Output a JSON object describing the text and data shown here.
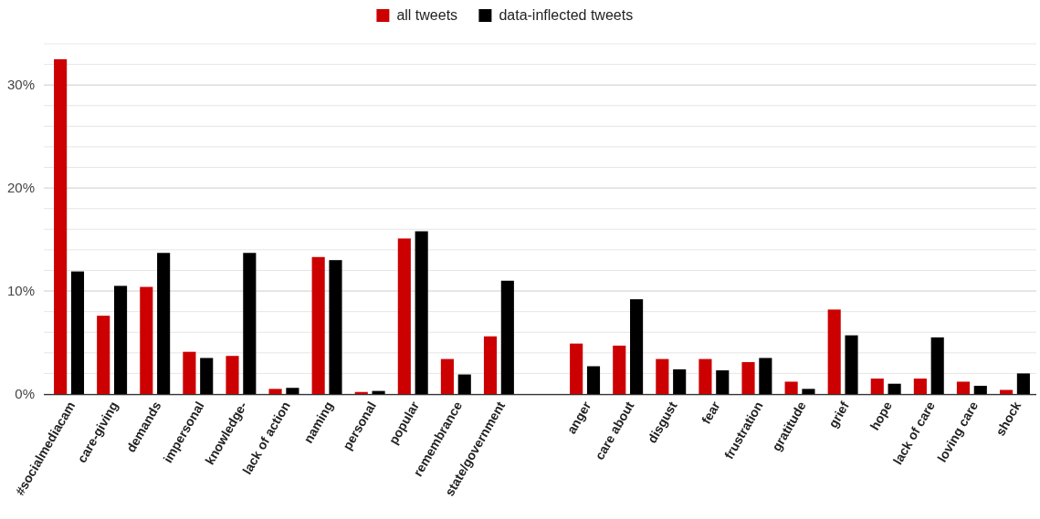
{
  "chart_data": {
    "type": "bar",
    "categories": [
      "#socialmediacam",
      "care-giving",
      "demands",
      "impersonal",
      "knowledge-",
      "lack of action",
      "naming",
      "personal",
      "popular",
      "remembrance",
      "state/government",
      null,
      "anger",
      "care about",
      "disgust",
      "fear",
      "frustration",
      "gratitude",
      "grief",
      "hope",
      "lack of care",
      "loving care",
      "shock"
    ],
    "series": [
      {
        "name": "all tweets",
        "color": "#cc0000",
        "values": [
          32.5,
          7.6,
          10.4,
          4.1,
          3.7,
          0.5,
          13.3,
          0.2,
          15.1,
          3.4,
          5.6,
          null,
          4.9,
          4.7,
          3.4,
          3.4,
          3.1,
          1.2,
          8.2,
          1.5,
          1.5,
          1.2,
          0.4
        ]
      },
      {
        "name": "data-inflected tweets",
        "color": "#000000",
        "values": [
          11.9,
          10.5,
          13.7,
          3.5,
          13.7,
          0.6,
          13.0,
          0.3,
          15.8,
          1.9,
          11.0,
          null,
          2.7,
          9.2,
          2.4,
          2.3,
          3.5,
          0.5,
          5.7,
          1.0,
          5.5,
          0.8,
          2.0
        ]
      }
    ],
    "ylim": [
      0,
      34
    ],
    "yticks": [
      {
        "value": 0,
        "label": "0%"
      },
      {
        "value": 2,
        "label": null
      },
      {
        "value": 4,
        "label": null
      },
      {
        "value": 6,
        "label": null
      },
      {
        "value": 8,
        "label": null
      },
      {
        "value": 10,
        "label": "10%"
      },
      {
        "value": 12,
        "label": null
      },
      {
        "value": 14,
        "label": null
      },
      {
        "value": 16,
        "label": null
      },
      {
        "value": 18,
        "label": null
      },
      {
        "value": 20,
        "label": "20%"
      },
      {
        "value": 22,
        "label": null
      },
      {
        "value": 24,
        "label": null
      },
      {
        "value": 26,
        "label": null
      },
      {
        "value": 28,
        "label": null
      },
      {
        "value": 30,
        "label": "30%"
      },
      {
        "value": 32,
        "label": null
      },
      {
        "value": 34,
        "label": null
      }
    ],
    "grid": "y",
    "legend": "top"
  }
}
